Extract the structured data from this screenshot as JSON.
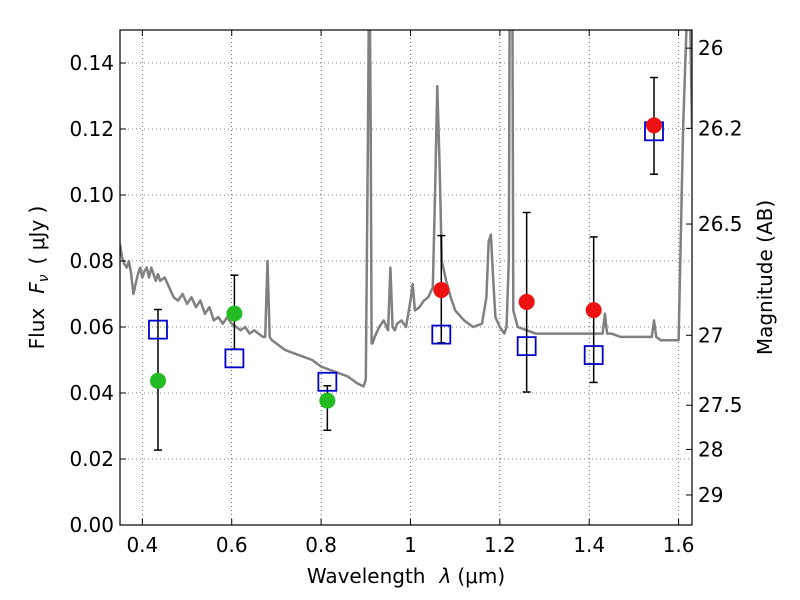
{
  "chart_data": {
    "type": "scatter",
    "title": "",
    "xlabel": "Wavelength  λ (μm)",
    "ylabel": "Flux  F_ν  ( μJy )",
    "ylabel_parts": {
      "prefix": "Flux",
      "symbol": "F",
      "subscript": "ν",
      "unit": "( μJy )"
    },
    "xlabel_parts": {
      "prefix": "Wavelength",
      "symbol": "λ",
      "unit": "(μm)"
    },
    "right_ylabel": "Magnitude (AB)",
    "xlim": [
      0.35,
      1.63
    ],
    "ylim": [
      0.0,
      0.15
    ],
    "grid": true,
    "x_ticks": [
      {
        "value": 0.4,
        "label": "0.4"
      },
      {
        "value": 0.6,
        "label": "0.6"
      },
      {
        "value": 0.8,
        "label": "0.8"
      },
      {
        "value": 1.0,
        "label": "1"
      },
      {
        "value": 1.2,
        "label": "1.2"
      },
      {
        "value": 1.4,
        "label": "1.4"
      },
      {
        "value": 1.6,
        "label": "1.6"
      }
    ],
    "y_ticks": [
      {
        "value": 0.0,
        "label": "0.00"
      },
      {
        "value": 0.02,
        "label": "0.02"
      },
      {
        "value": 0.04,
        "label": "0.04"
      },
      {
        "value": 0.06,
        "label": "0.06"
      },
      {
        "value": 0.08,
        "label": "0.08"
      },
      {
        "value": 0.1,
        "label": "0.10"
      },
      {
        "value": 0.12,
        "label": "0.12"
      },
      {
        "value": 0.14,
        "label": "0.14"
      }
    ],
    "right_ticks": [
      {
        "label": "26",
        "flux": 0.1445
      },
      {
        "label": "26.2",
        "flux": 0.1202
      },
      {
        "label": "26.5",
        "flux": 0.0912
      },
      {
        "label": "27",
        "flux": 0.0575
      },
      {
        "label": "27.5",
        "flux": 0.0363
      },
      {
        "label": "28",
        "flux": 0.0229
      },
      {
        "label": "29",
        "flux": 0.0091
      }
    ],
    "series": [
      {
        "name": "green-detections",
        "marker": "circle",
        "color": "#22bb22",
        "points": [
          {
            "x": 0.435,
            "y": 0.0437,
            "yerr_low": 0.0227,
            "yerr_high": 0.0653
          },
          {
            "x": 0.606,
            "y": 0.0641,
            "yerr_low": 0.0533,
            "yerr_high": 0.0757
          },
          {
            "x": 0.814,
            "y": 0.0377,
            "yerr_low": 0.0287,
            "yerr_high": 0.0422
          }
        ]
      },
      {
        "name": "red-detections",
        "marker": "circle",
        "color": "#ee1111",
        "points": [
          {
            "x": 1.069,
            "y": 0.0712,
            "yerr_low": 0.0552,
            "yerr_high": 0.0877
          },
          {
            "x": 1.26,
            "y": 0.0676,
            "yerr_low": 0.0403,
            "yerr_high": 0.0947
          },
          {
            "x": 1.41,
            "y": 0.0651,
            "yerr_low": 0.0432,
            "yerr_high": 0.0873
          },
          {
            "x": 1.545,
            "y": 0.1211,
            "yerr_low": 0.1063,
            "yerr_high": 0.1356
          }
        ]
      },
      {
        "name": "model-photometry",
        "marker": "open-square",
        "color": "#0000cc",
        "points": [
          {
            "x": 0.435,
            "y": 0.0592
          },
          {
            "x": 0.606,
            "y": 0.0505
          },
          {
            "x": 0.814,
            "y": 0.0434
          },
          {
            "x": 1.069,
            "y": 0.0577
          },
          {
            "x": 1.26,
            "y": 0.0542
          },
          {
            "x": 1.41,
            "y": 0.0515
          },
          {
            "x": 1.545,
            "y": 0.1193
          }
        ]
      }
    ],
    "spectrum": {
      "name": "template-spectrum",
      "color": "#808080",
      "x": [
        0.35,
        0.355,
        0.36,
        0.365,
        0.37,
        0.375,
        0.38,
        0.385,
        0.39,
        0.395,
        0.4,
        0.405,
        0.41,
        0.415,
        0.42,
        0.425,
        0.43,
        0.435,
        0.44,
        0.45,
        0.46,
        0.47,
        0.48,
        0.49,
        0.5,
        0.51,
        0.52,
        0.53,
        0.54,
        0.55,
        0.56,
        0.57,
        0.58,
        0.59,
        0.6,
        0.61,
        0.62,
        0.63,
        0.64,
        0.65,
        0.66,
        0.67,
        0.675,
        0.68,
        0.685,
        0.69,
        0.7,
        0.72,
        0.74,
        0.76,
        0.78,
        0.8,
        0.82,
        0.84,
        0.86,
        0.88,
        0.895,
        0.9,
        0.905,
        0.907,
        0.909,
        0.911,
        0.913,
        0.915,
        0.92,
        0.93,
        0.94,
        0.95,
        0.955,
        0.96,
        0.965,
        0.97,
        0.98,
        0.99,
        1.0,
        1.005,
        1.01,
        1.02,
        1.03,
        1.04,
        1.05,
        1.055,
        1.06,
        1.065,
        1.07,
        1.08,
        1.09,
        1.1,
        1.12,
        1.14,
        1.16,
        1.17,
        1.175,
        1.18,
        1.185,
        1.19,
        1.2,
        1.21,
        1.215,
        1.22,
        1.222,
        1.224,
        1.226,
        1.228,
        1.23,
        1.24,
        1.26,
        1.28,
        1.3,
        1.32,
        1.34,
        1.36,
        1.38,
        1.4,
        1.42,
        1.43,
        1.435,
        1.44,
        1.45,
        1.47,
        1.49,
        1.51,
        1.53,
        1.54,
        1.545,
        1.55,
        1.56,
        1.58,
        1.59,
        1.6,
        1.61,
        1.62,
        1.625,
        1.63
      ],
      "y": [
        0.085,
        0.081,
        0.079,
        0.078,
        0.08,
        0.076,
        0.07,
        0.073,
        0.076,
        0.078,
        0.075,
        0.077,
        0.078,
        0.075,
        0.078,
        0.076,
        0.074,
        0.076,
        0.074,
        0.075,
        0.072,
        0.069,
        0.068,
        0.07,
        0.067,
        0.069,
        0.066,
        0.068,
        0.064,
        0.066,
        0.062,
        0.063,
        0.061,
        0.063,
        0.061,
        0.06,
        0.059,
        0.06,
        0.058,
        0.059,
        0.058,
        0.057,
        0.057,
        0.08,
        0.057,
        0.056,
        0.055,
        0.053,
        0.052,
        0.051,
        0.05,
        0.048,
        0.047,
        0.046,
        0.045,
        0.043,
        0.042,
        0.044,
        0.12,
        0.16,
        0.16,
        0.12,
        0.055,
        0.055,
        0.057,
        0.06,
        0.062,
        0.059,
        0.078,
        0.06,
        0.059,
        0.061,
        0.062,
        0.06,
        0.068,
        0.073,
        0.065,
        0.066,
        0.068,
        0.069,
        0.072,
        0.1,
        0.133,
        0.11,
        0.08,
        0.074,
        0.069,
        0.065,
        0.062,
        0.06,
        0.061,
        0.069,
        0.086,
        0.088,
        0.075,
        0.063,
        0.06,
        0.058,
        0.06,
        0.08,
        0.16,
        0.16,
        0.16,
        0.16,
        0.065,
        0.06,
        0.059,
        0.058,
        0.058,
        0.058,
        0.058,
        0.058,
        0.058,
        0.058,
        0.058,
        0.058,
        0.064,
        0.058,
        0.058,
        0.057,
        0.057,
        0.057,
        0.057,
        0.057,
        0.062,
        0.057,
        0.056,
        0.056,
        0.056,
        0.056,
        0.12,
        0.16,
        0.16,
        0.12
      ]
    }
  }
}
